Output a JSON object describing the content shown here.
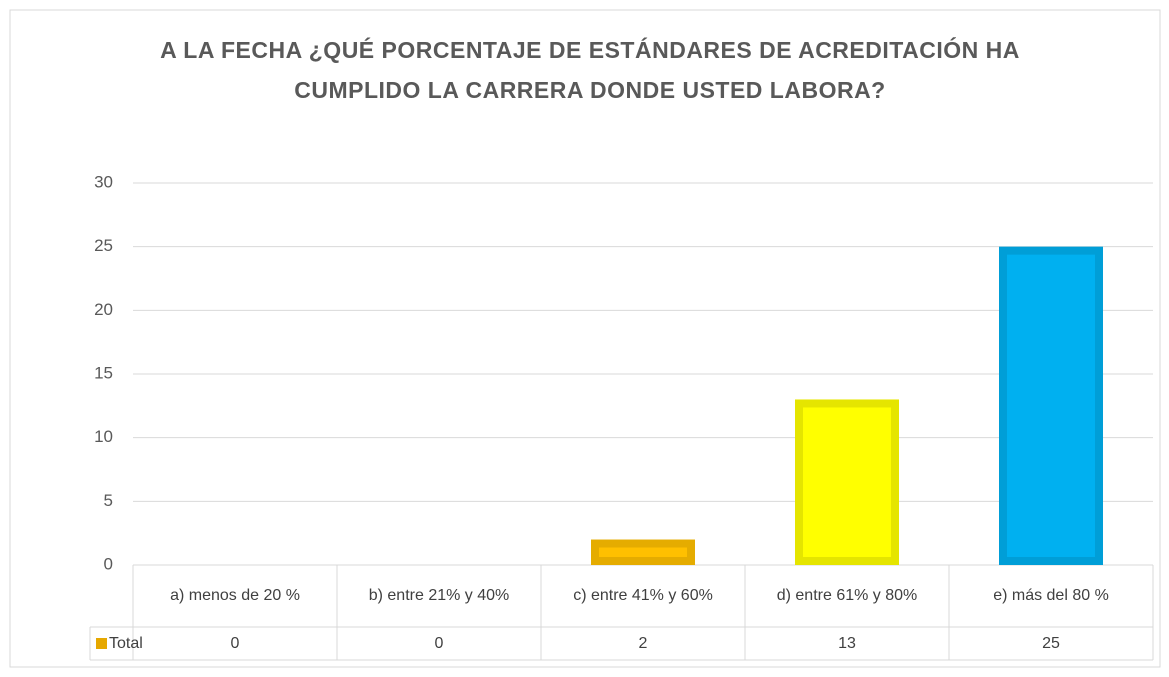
{
  "chart_data": {
    "type": "bar",
    "title": "A LA FECHA ¿QUÉ PORCENTAJE DE ESTÁNDARES DE ACREDITACIÓN HA CUMPLIDO LA CARRERA DONDE USTED LABORA?",
    "categories": [
      "a)    menos de 20 %",
      "b) entre 21% y 40%",
      "c) entre 41% y 60%",
      "d)  entre 61% y 80%",
      "e) más del 80 %"
    ],
    "series": [
      {
        "name": "Total",
        "color": "#e6a800",
        "values": [
          0,
          0,
          2,
          13,
          25
        ]
      }
    ],
    "colors": [
      "#ffc000",
      "#ffc000",
      "#ffc000",
      "#ffff00",
      "#00b0f0"
    ],
    "ylim": [
      0,
      30
    ],
    "yticks": [
      0,
      5,
      10,
      15,
      20,
      25,
      30
    ],
    "grid": true,
    "data_table": true
  }
}
